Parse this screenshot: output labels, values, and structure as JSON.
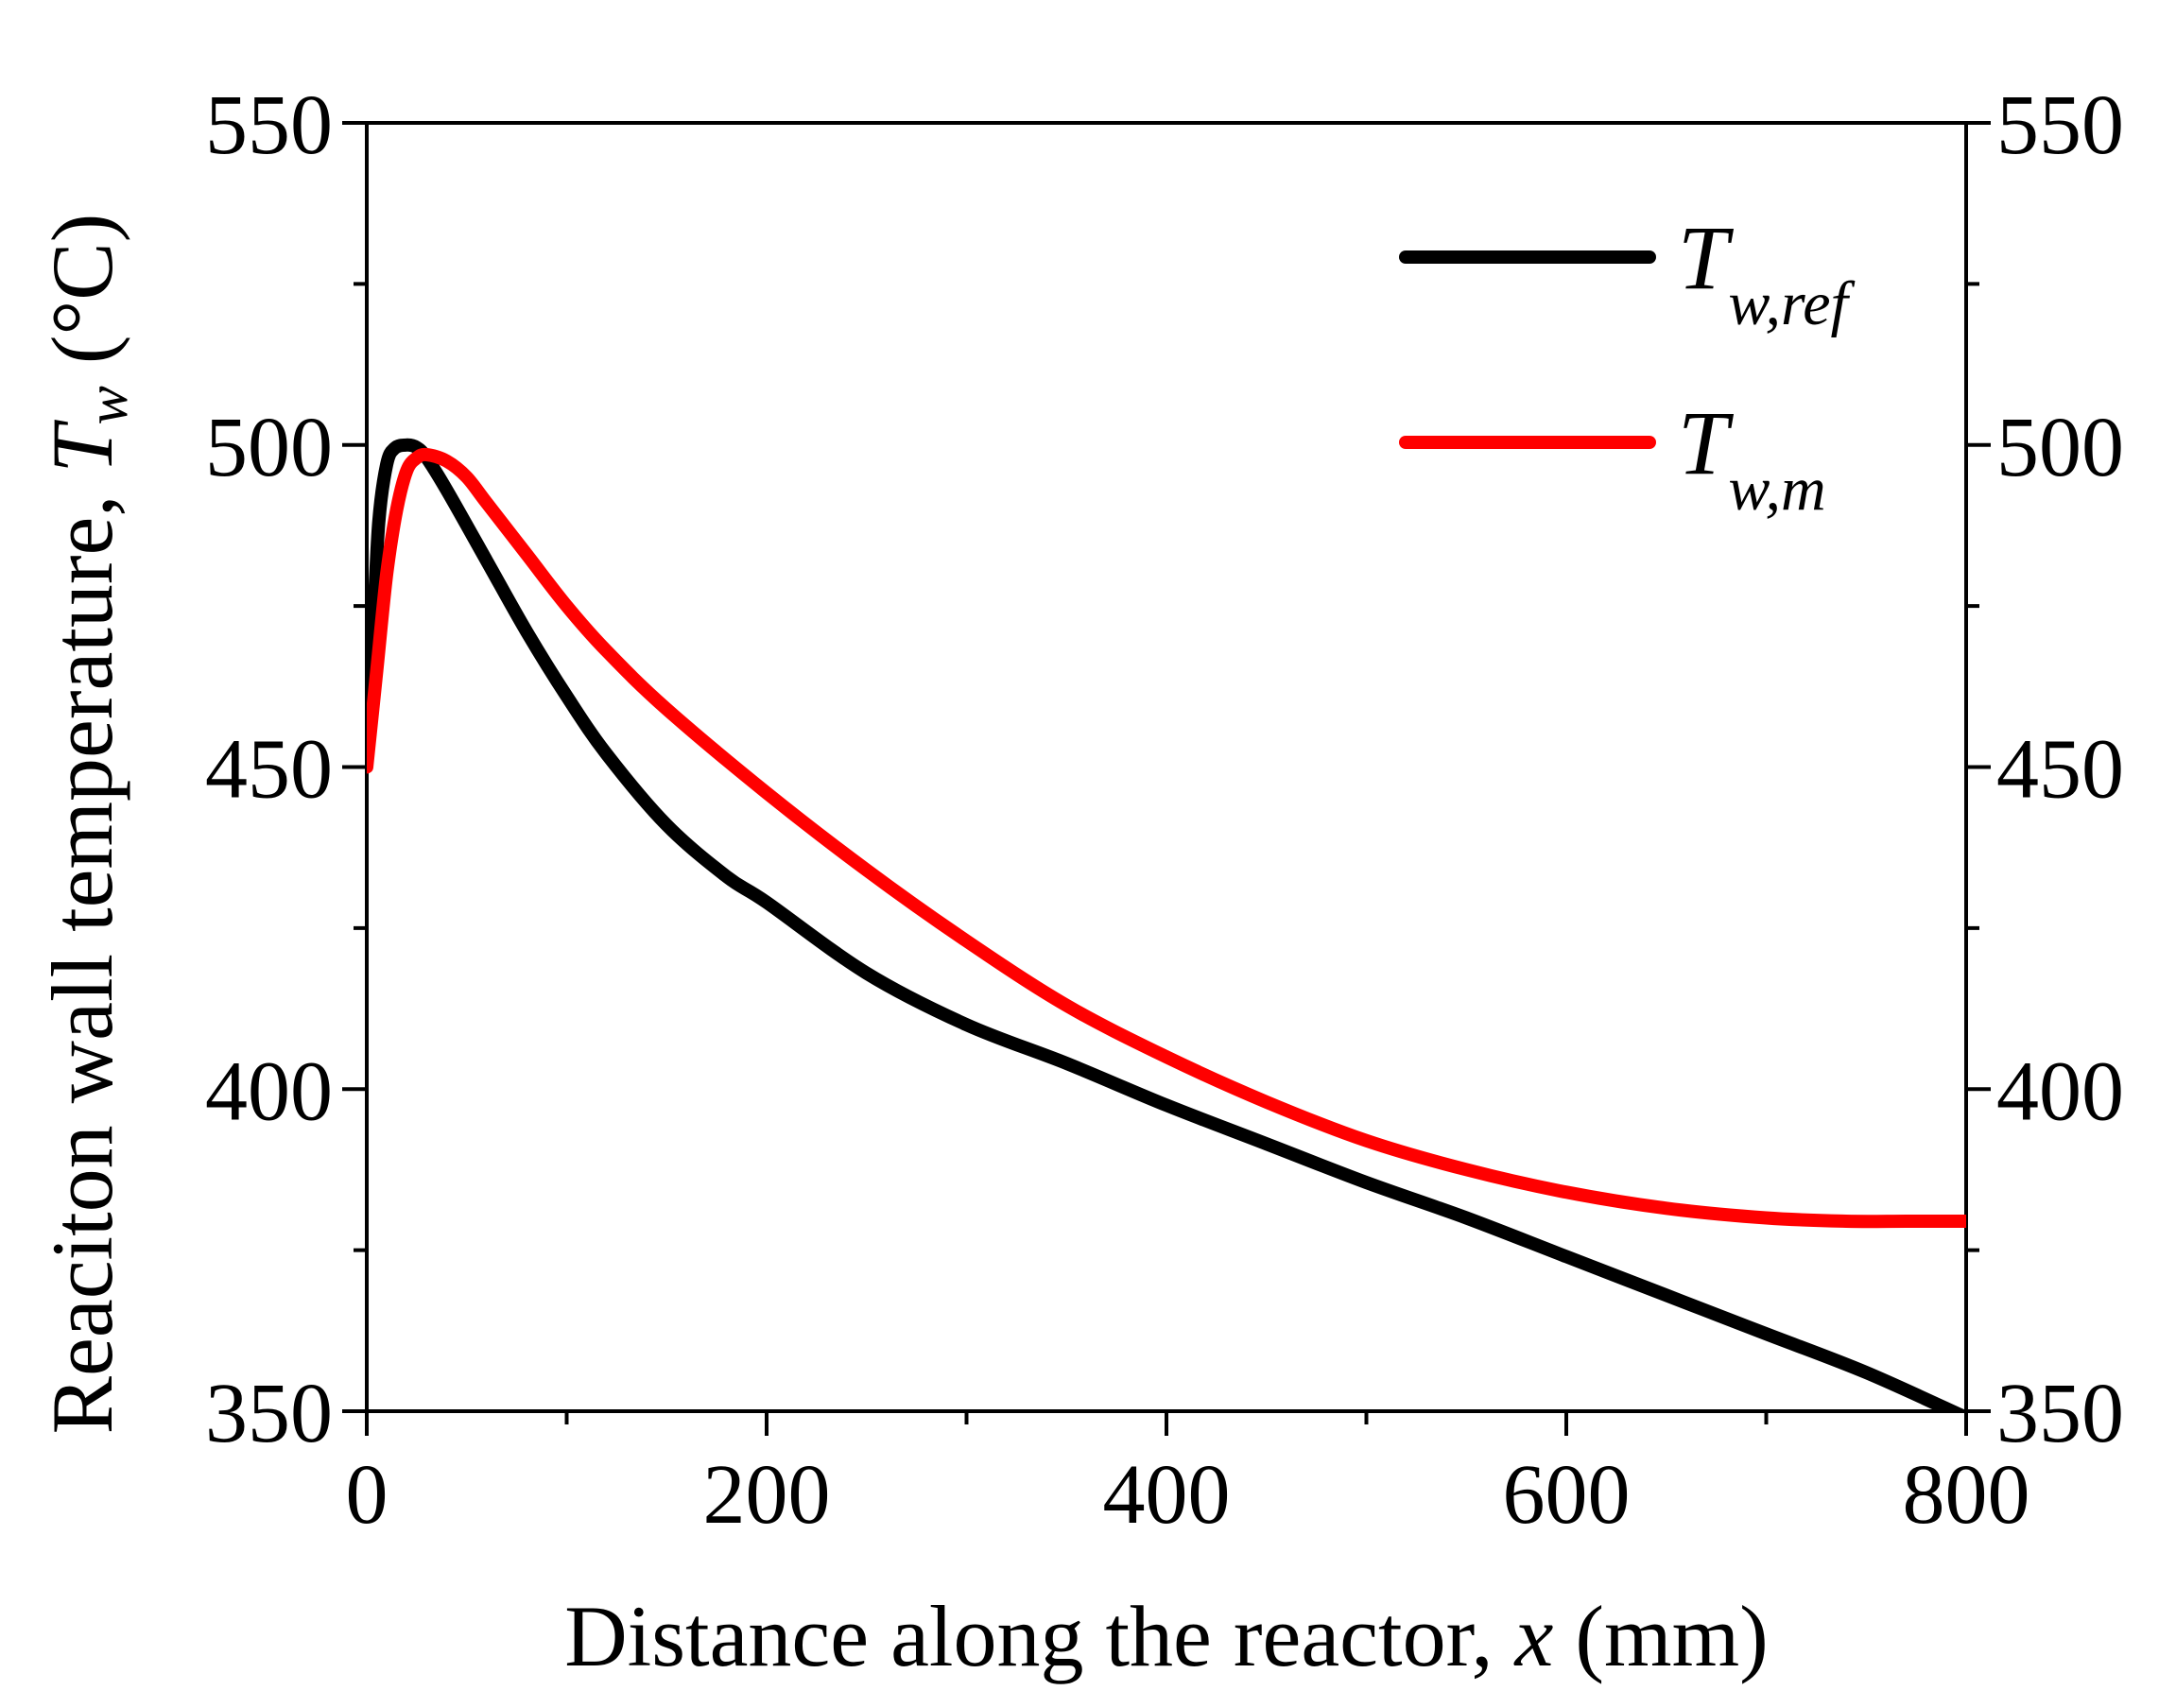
{
  "chart_data": {
    "type": "line",
    "title": "",
    "xlabel": {
      "text": "Distance along the reactor, ",
      "var": "x",
      "unit": " (mm)"
    },
    "ylabel": {
      "text": "Reaciton wall temperature, ",
      "var": "T",
      "sub": "w",
      "unit": " (°C)"
    },
    "xlim": [
      0,
      800
    ],
    "ylim": [
      350,
      550
    ],
    "xticks": [
      0,
      200,
      400,
      600,
      800
    ],
    "xtick_labels": [
      "0",
      "200",
      "400",
      "600",
      "800"
    ],
    "yticks": [
      350,
      400,
      450,
      500,
      550
    ],
    "ytick_labels": [
      "350",
      "400",
      "450",
      "500",
      "550"
    ],
    "x_minor_ticks": [
      100,
      300,
      500,
      700
    ],
    "y_minor_ticks": [
      375,
      425,
      475,
      525
    ],
    "grid": false,
    "legend_position": "top-right",
    "series": [
      {
        "name": "T_w,ref",
        "label_main": "T",
        "label_sub": "w,ref",
        "color": "#000000",
        "x": [
          0,
          3,
          6,
          10,
          14,
          20,
          25,
          30,
          40,
          60,
          80,
          100,
          120,
          150,
          180,
          200,
          250,
          300,
          350,
          400,
          450,
          500,
          550,
          600,
          650,
          700,
          750,
          800
        ],
        "y": [
          455,
          470,
          488,
          497,
          499.5,
          500,
          499.6,
          498,
          493,
          482,
          471,
          461,
          452,
          441,
          433,
          429,
          418,
          410,
          404,
          397.5,
          391.5,
          385.5,
          380,
          374,
          368,
          362,
          356,
          349
        ]
      },
      {
        "name": "T_w,m",
        "label_main": "T",
        "label_sub": "w,m",
        "color": "#ff0000",
        "x": [
          0,
          5,
          10,
          15,
          20,
          25,
          30,
          40,
          50,
          60,
          80,
          100,
          120,
          150,
          200,
          250,
          300,
          350,
          400,
          450,
          500,
          550,
          600,
          650,
          700,
          740,
          770,
          800
        ],
        "y": [
          450,
          465,
          480,
          490,
          496,
          498,
          498.5,
          497.5,
          495,
          491,
          483,
          475,
          468,
          459,
          446,
          434,
          423,
          413,
          405,
          398,
          392,
          387.5,
          384,
          381.5,
          380,
          379.5,
          379.5,
          379.5
        ]
      }
    ]
  }
}
